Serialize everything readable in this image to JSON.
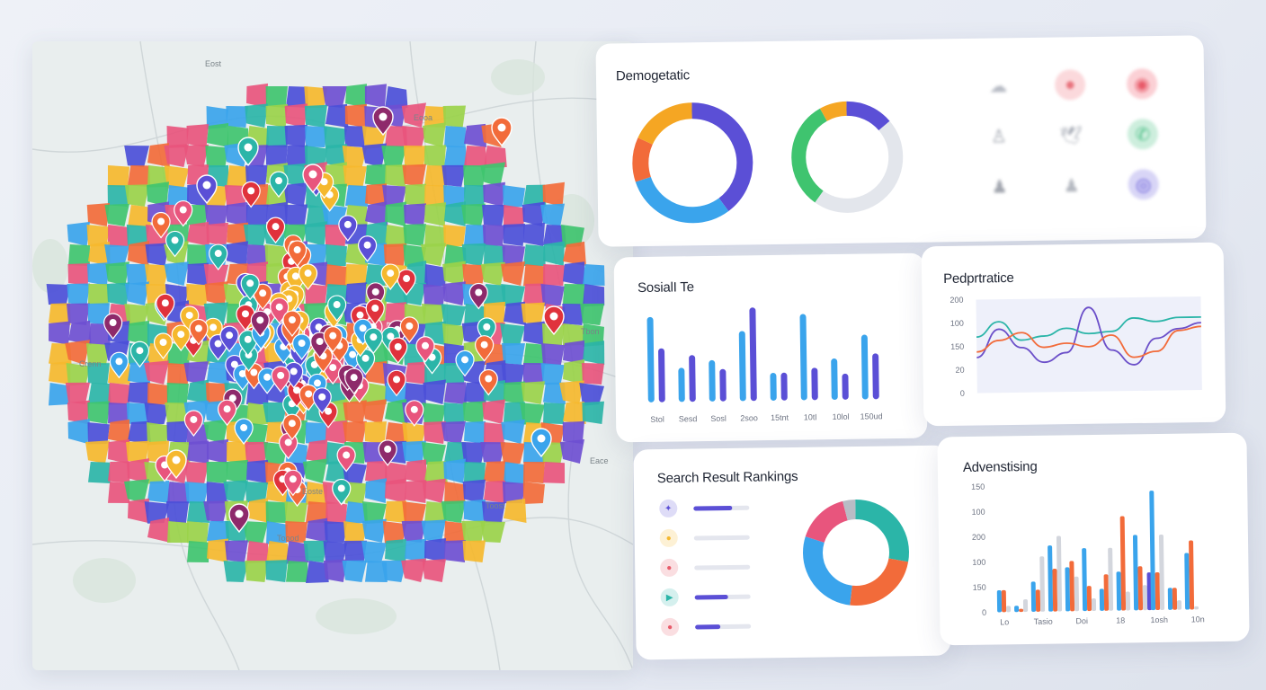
{
  "map": {
    "labels": [
      "Eost",
      "Eooa",
      "Crenn",
      "Tbon",
      "Eace",
      "Eoste",
      "Toost",
      "Toood"
    ]
  },
  "demographic": {
    "title": "Demogetatic",
    "donuts": [
      {
        "name": "donut-1",
        "segments": [
          {
            "value": 40,
            "color": "#5b4fd6"
          },
          {
            "value": 30,
            "color": "#3aa4ec"
          },
          {
            "value": 12,
            "color": "#f26b3a"
          },
          {
            "value": 18,
            "color": "#f5a623"
          }
        ]
      },
      {
        "name": "donut-2",
        "segments": [
          {
            "value": 14,
            "color": "#5b4fd6"
          },
          {
            "value": 46,
            "color": "#e3e6ec"
          },
          {
            "value": 32,
            "color": "#3fc46f"
          },
          {
            "value": 8,
            "color": "#f5a623"
          }
        ]
      }
    ],
    "icons": [
      {
        "name": "users-icon",
        "glyph": "☁",
        "color": "#b8bcc5",
        "bg": "transparent"
      },
      {
        "name": "profile-icon",
        "glyph": "●",
        "color": "#e8737d",
        "bg": "#fbd9dc"
      },
      {
        "name": "instagram-icon",
        "glyph": "◉",
        "color": "#e85b6a",
        "bg": "#fbd0d5"
      },
      {
        "name": "person-icon",
        "glyph": "♙",
        "color": "#9ea3ad",
        "bg": "transparent"
      },
      {
        "name": "twitter-icon",
        "glyph": "🕊",
        "color": "#a7acb6",
        "bg": "transparent"
      },
      {
        "name": "whatsapp-icon",
        "glyph": "✆",
        "color": "#4bbf86",
        "bg": "#cdeedd"
      },
      {
        "name": "group-icon",
        "glyph": "♟",
        "color": "#a1a5ae",
        "bg": "transparent"
      },
      {
        "name": "user-alert-icon",
        "glyph": "♟",
        "color": "#b4b8c0",
        "bg": "transparent"
      },
      {
        "name": "target-icon",
        "glyph": "◎",
        "color": "#5b4fd6",
        "bg": "#d8d5f6"
      }
    ]
  },
  "social": {
    "title": "SosialI Te",
    "x_labels": [
      "Stol",
      "Sesd",
      "Sosl",
      "2soo",
      "15tnt",
      "10tl",
      "10lol",
      "150ud"
    ]
  },
  "perspective": {
    "title": "Pedprtratice",
    "y_labels": [
      "200",
      "100",
      "150",
      "20",
      "0"
    ]
  },
  "search": {
    "title": "Search Result Rankings",
    "rows": [
      {
        "name": "rank-1",
        "glyph": "✦",
        "color": "#5b4fd6",
        "fill": 0.7
      },
      {
        "name": "rank-2",
        "glyph": "●",
        "color": "#f5b82e",
        "fill": 0.0
      },
      {
        "name": "rank-3",
        "glyph": "●",
        "color": "#e85b6a",
        "fill": 0.0
      },
      {
        "name": "rank-4",
        "glyph": "▶",
        "color": "#2bb5a8",
        "fill": 0.6
      },
      {
        "name": "rank-5",
        "glyph": "●",
        "color": "#e85b6a",
        "fill": 0.45
      }
    ],
    "donut": [
      {
        "value": 28,
        "color": "#2bb5a8"
      },
      {
        "value": 24,
        "color": "#f26b3a"
      },
      {
        "value": 28,
        "color": "#3aa4ec"
      },
      {
        "value": 16,
        "color": "#e8557d"
      },
      {
        "value": 4,
        "color": "#b8bcc5"
      }
    ]
  },
  "advertising": {
    "title": "Advenstising",
    "y_labels": [
      "150",
      "100",
      "200",
      "100",
      "150",
      "0"
    ],
    "x_labels": [
      "Lo",
      "Tasio",
      "Doi",
      "18",
      "1osh",
      "10n"
    ]
  },
  "chart_data": [
    {
      "type": "bar",
      "title": "SosialI Te",
      "categories": [
        "Stol",
        "Sesd",
        "Sosl",
        "2soo",
        "15tnt",
        "10tl",
        "10lol",
        "150ud"
      ],
      "series": [
        {
          "name": "A",
          "color": "#3aa4ec",
          "values": [
            95,
            38,
            46,
            78,
            31,
            96,
            46,
            72
          ]
        },
        {
          "name": "B",
          "color": "#5b4fd6",
          "values": [
            60,
            52,
            36,
            104,
            31,
            36,
            29,
            51
          ]
        }
      ],
      "ylim": [
        0,
        110
      ]
    },
    {
      "type": "line",
      "title": "Pedprtratice",
      "x": [
        0,
        1,
        2,
        3,
        4,
        5,
        6,
        7,
        8,
        9,
        10
      ],
      "series": [
        {
          "name": "teal",
          "color": "#2bb5a8",
          "values": [
            150,
            190,
            140,
            150,
            170,
            155,
            160,
            195,
            185,
            195,
            195
          ]
        },
        {
          "name": "purple",
          "color": "#6b4fc9",
          "values": [
            95,
            170,
            120,
            80,
            105,
            225,
            110,
            70,
            140,
            165,
            180
          ]
        },
        {
          "name": "orange",
          "color": "#f26b3a",
          "values": [
            110,
            140,
            160,
            120,
            130,
            120,
            150,
            90,
            105,
            160,
            170
          ]
        }
      ],
      "y_labels": [
        "200",
        "100",
        "150",
        "20",
        "0"
      ],
      "ylim": [
        0,
        250
      ]
    },
    {
      "type": "bar",
      "title": "Advenstising",
      "categories": [
        "1",
        "2",
        "3",
        "4",
        "5",
        "6",
        "7",
        "8",
        "9",
        "10",
        "11",
        "12"
      ],
      "series": [
        {
          "name": "blue",
          "color": "#3aa4ec",
          "values": [
            35,
            10,
            48,
            105,
            70,
            100,
            35,
            62,
            120,
            190,
            35,
            90
          ]
        },
        {
          "name": "orange",
          "color": "#f26b3a",
          "values": [
            35,
            5,
            35,
            68,
            80,
            40,
            58,
            150,
            70,
            60,
            35,
            110
          ]
        },
        {
          "name": "gray",
          "color": "#d3d6dd",
          "values": [
            10,
            20,
            88,
            120,
            55,
            20,
            100,
            30,
            40,
            120,
            15,
            5
          ]
        },
        {
          "name": "purple",
          "color": "#5b4fd6",
          "values": [
            0,
            0,
            0,
            0,
            0,
            0,
            0,
            0,
            60,
            0,
            0,
            0
          ]
        }
      ],
      "y_labels": [
        "150",
        "100",
        "200",
        "100",
        "150",
        "0"
      ],
      "x_labels": [
        "Lo",
        "Tasio",
        "Doi",
        "18",
        "1osh",
        "10n"
      ],
      "ylim": [
        0,
        200
      ]
    }
  ]
}
